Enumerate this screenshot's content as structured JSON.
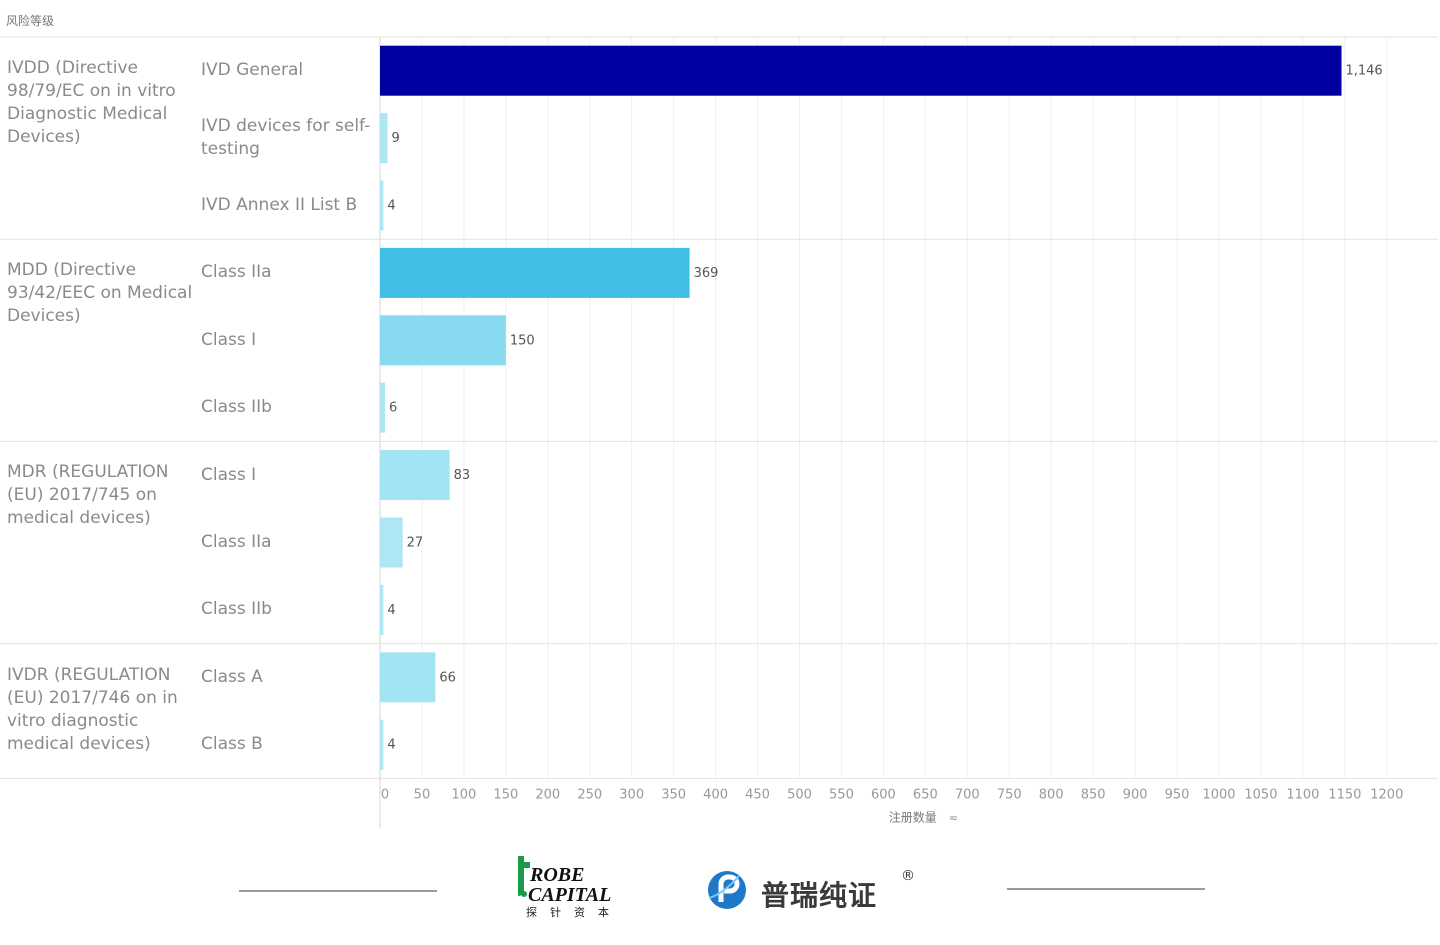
{
  "chart_data": {
    "type": "bar",
    "orientation": "horizontal",
    "corner_title": "风险等级",
    "xlabel": "注册数量",
    "xlim": [
      0,
      1230
    ],
    "xticks": [
      0,
      50,
      100,
      150,
      200,
      250,
      300,
      350,
      400,
      450,
      500,
      550,
      600,
      650,
      700,
      750,
      800,
      850,
      900,
      950,
      1000,
      1050,
      1100,
      1150,
      1200
    ],
    "grid": true,
    "groups": [
      {
        "label": "IVDD (Directive 98/79/EC on in vitro Diagnostic Medical Devices)",
        "bars": [
          {
            "category": "IVD General",
            "value": 1146,
            "value_label": "1,146",
            "color": "#0000a0"
          },
          {
            "category": "IVD devices for self-testing",
            "value": 9,
            "value_label": "9",
            "color": "#aee6f5"
          },
          {
            "category": "IVD Annex II List B",
            "value": 4,
            "value_label": "4",
            "color": "#aee6f5"
          }
        ]
      },
      {
        "label": "MDD (Directive 93/42/EEC on Medical Devices)",
        "bars": [
          {
            "category": "Class IIa",
            "value": 369,
            "value_label": "369",
            "color": "#41bee6"
          },
          {
            "category": "Class I",
            "value": 150,
            "value_label": "150",
            "color": "#87daf0"
          },
          {
            "category": "Class IIb",
            "value": 6,
            "value_label": "6",
            "color": "#aee6f5"
          }
        ]
      },
      {
        "label": "MDR (REGULATION (EU) 2017/745 on medical devices)",
        "bars": [
          {
            "category": "Class I",
            "value": 83,
            "value_label": "83",
            "color": "#a2e4f4"
          },
          {
            "category": "Class IIa",
            "value": 27,
            "value_label": "27",
            "color": "#aee6f5"
          },
          {
            "category": "Class IIb",
            "value": 4,
            "value_label": "4",
            "color": "#aee6f5"
          }
        ]
      },
      {
        "label": "IVDR (REGULATION (EU) 2017/746 on in vitro diagnostic medical devices)",
        "bars": [
          {
            "category": "Class A",
            "value": 66,
            "value_label": "66",
            "color": "#a2e4f4"
          },
          {
            "category": "Class B",
            "value": 4,
            "value_label": "4",
            "color": "#aee6f5"
          }
        ]
      }
    ]
  },
  "footer": {
    "logo1_line1": "ROBE",
    "logo1_line2": "CAPITAL",
    "logo1_cn": "探针资本",
    "logo2_text": "普瑞纯证",
    "logo2_reg": "®"
  }
}
